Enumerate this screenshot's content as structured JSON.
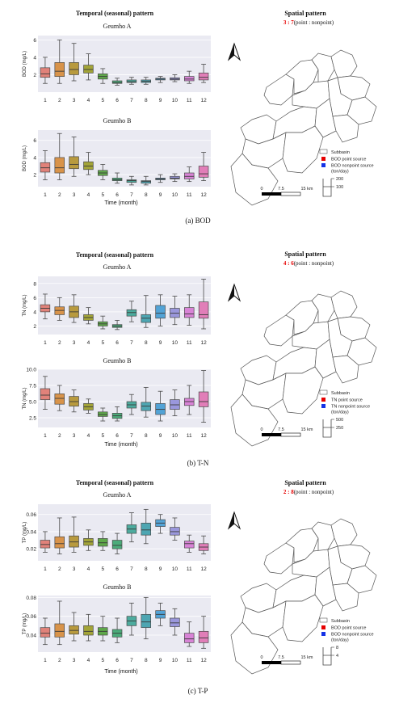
{
  "panels": [
    {
      "temporal_title": "Temporal (seasonal) pattern",
      "spatial_title": "Spatial pattern",
      "ratio_value": "3 : 7",
      "ratio_suffix": "(point : nonpoint)",
      "xlabel": "Time (month)",
      "caption": "(a)  BOD",
      "legend": {
        "subbasin": "Subbasin",
        "point": "BOD point source",
        "nonpoint": "BOD nonpoint source",
        "unit": "(ton/day)",
        "scale_top": "200",
        "scale_bottom": "100"
      },
      "scalebar": {
        "zero": "0",
        "mid": "7.5",
        "end": "15 km"
      }
    },
    {
      "temporal_title": "Temporal (seasonal) pattern",
      "spatial_title": "Spatial pattern",
      "ratio_value": "4 : 6",
      "ratio_suffix": "(point : nonpoint)",
      "xlabel": "Time (month)",
      "caption": "(b)  T-N",
      "legend": {
        "subbasin": "Subbasin",
        "point": "TN point source",
        "nonpoint": "TN nonpoint source",
        "unit": "(ton/day)",
        "scale_top": "500",
        "scale_bottom": "250"
      },
      "scalebar": {
        "zero": "0",
        "mid": "7.5",
        "end": "15 km"
      }
    },
    {
      "temporal_title": "Temporal (seasonal) pattern",
      "spatial_title": "Spatial pattern",
      "ratio_value": "2 : 8",
      "ratio_suffix": "(point : nonpoint)",
      "xlabel": "Time (month)",
      "caption": "(c)  T-P",
      "legend": {
        "subbasin": "Subbasin",
        "point": "BOD point source",
        "nonpoint": "BOD nonpoint source",
        "unit": "(ton/day)",
        "scale_top": "8",
        "scale_bottom": "4"
      },
      "scalebar": {
        "zero": "0",
        "mid": "7.5",
        "end": "15 km"
      }
    }
  ],
  "chart_data": [
    {
      "type": "box",
      "title": "Geumho A",
      "ylabel": "BOD (mg/L)",
      "categories": [
        "1",
        "2",
        "3",
        "4",
        "5",
        "6",
        "7",
        "8",
        "9",
        "10",
        "11",
        "12"
      ],
      "ylim": [
        0,
        6.5
      ],
      "yticks": [
        "2",
        "4",
        "6"
      ],
      "boxes": [
        {
          "min": 1.0,
          "q1": 1.7,
          "median": 2.1,
          "q3": 2.8,
          "max": 4.0
        },
        {
          "min": 1.0,
          "q1": 1.8,
          "median": 2.4,
          "q3": 3.4,
          "max": 6.0
        },
        {
          "min": 1.3,
          "q1": 2.0,
          "median": 2.6,
          "q3": 3.4,
          "max": 5.6
        },
        {
          "min": 1.4,
          "q1": 2.2,
          "median": 2.6,
          "q3": 3.1,
          "max": 4.4
        },
        {
          "min": 1.0,
          "q1": 1.5,
          "median": 1.8,
          "q3": 2.1,
          "max": 2.7
        },
        {
          "min": 0.8,
          "q1": 1.0,
          "median": 1.1,
          "q3": 1.3,
          "max": 1.6
        },
        {
          "min": 0.9,
          "q1": 1.1,
          "median": 1.2,
          "q3": 1.4,
          "max": 1.7
        },
        {
          "min": 0.9,
          "q1": 1.1,
          "median": 1.25,
          "q3": 1.4,
          "max": 1.7
        },
        {
          "min": 1.1,
          "q1": 1.4,
          "median": 1.5,
          "q3": 1.6,
          "max": 1.8
        },
        {
          "min": 1.2,
          "q1": 1.4,
          "median": 1.5,
          "q3": 1.65,
          "max": 2.0
        },
        {
          "min": 1.0,
          "q1": 1.3,
          "median": 1.5,
          "q3": 1.8,
          "max": 2.4
        },
        {
          "min": 1.1,
          "q1": 1.4,
          "median": 1.7,
          "q3": 2.2,
          "max": 3.2
        }
      ]
    },
    {
      "type": "box",
      "title": "Geumho B",
      "ylabel": "BOD (mg/L)",
      "categories": [
        "1",
        "2",
        "3",
        "4",
        "5",
        "6",
        "7",
        "8",
        "9",
        "10",
        "11",
        "12"
      ],
      "ylim": [
        0.6,
        7.2
      ],
      "yticks": [
        "2",
        "4",
        "6"
      ],
      "boxes": [
        {
          "min": 1.4,
          "q1": 2.3,
          "median": 2.8,
          "q3": 3.4,
          "max": 4.8
        },
        {
          "min": 1.4,
          "q1": 2.2,
          "median": 2.8,
          "q3": 4.0,
          "max": 6.8
        },
        {
          "min": 1.8,
          "q1": 2.7,
          "median": 3.2,
          "q3": 4.1,
          "max": 6.4
        },
        {
          "min": 2.0,
          "q1": 2.6,
          "median": 3.0,
          "q3": 3.5,
          "max": 4.6
        },
        {
          "min": 1.4,
          "q1": 1.9,
          "median": 2.2,
          "q3": 2.5,
          "max": 3.2
        },
        {
          "min": 1.0,
          "q1": 1.3,
          "median": 1.4,
          "q3": 1.6,
          "max": 2.2
        },
        {
          "min": 0.8,
          "q1": 1.1,
          "median": 1.3,
          "q3": 1.4,
          "max": 1.8
        },
        {
          "min": 0.8,
          "q1": 1.0,
          "median": 1.2,
          "q3": 1.3,
          "max": 1.8
        },
        {
          "min": 1.1,
          "q1": 1.4,
          "median": 1.5,
          "q3": 1.6,
          "max": 2.0
        },
        {
          "min": 1.2,
          "q1": 1.5,
          "median": 1.6,
          "q3": 1.8,
          "max": 2.1
        },
        {
          "min": 1.2,
          "q1": 1.5,
          "median": 1.8,
          "q3": 2.2,
          "max": 2.9
        },
        {
          "min": 1.3,
          "q1": 1.7,
          "median": 2.1,
          "q3": 3.0,
          "max": 4.6
        }
      ]
    },
    {
      "type": "box",
      "title": "Geumho A",
      "ylabel": "TN (mg/L)",
      "categories": [
        "1",
        "2",
        "3",
        "4",
        "5",
        "6",
        "7",
        "8",
        "9",
        "10",
        "11",
        "12"
      ],
      "ylim": [
        0.8,
        9.0
      ],
      "yticks": [
        "2",
        "4",
        "6",
        "8"
      ],
      "boxes": [
        {
          "min": 3.0,
          "q1": 4.0,
          "median": 4.5,
          "q3": 5.0,
          "max": 6.5
        },
        {
          "min": 2.8,
          "q1": 3.6,
          "median": 4.2,
          "q3": 4.7,
          "max": 6.0
        },
        {
          "min": 2.5,
          "q1": 3.2,
          "median": 4.0,
          "q3": 4.8,
          "max": 6.4
        },
        {
          "min": 2.3,
          "q1": 2.8,
          "median": 3.2,
          "q3": 3.6,
          "max": 4.6
        },
        {
          "min": 1.6,
          "q1": 2.0,
          "median": 2.3,
          "q3": 2.6,
          "max": 3.4
        },
        {
          "min": 1.5,
          "q1": 1.8,
          "median": 2.0,
          "q3": 2.2,
          "max": 2.8
        },
        {
          "min": 2.6,
          "q1": 3.4,
          "median": 3.9,
          "q3": 4.3,
          "max": 5.5
        },
        {
          "min": 1.8,
          "q1": 2.5,
          "median": 3.1,
          "q3": 3.6,
          "max": 6.3
        },
        {
          "min": 2.0,
          "q1": 3.1,
          "median": 3.8,
          "q3": 4.9,
          "max": 6.4
        },
        {
          "min": 2.2,
          "q1": 3.2,
          "median": 3.8,
          "q3": 4.5,
          "max": 6.2
        },
        {
          "min": 2.1,
          "q1": 3.2,
          "median": 3.7,
          "q3": 4.6,
          "max": 6.4
        },
        {
          "min": 1.6,
          "q1": 3.1,
          "median": 3.6,
          "q3": 5.4,
          "max": 8.6
        }
      ]
    },
    {
      "type": "box",
      "title": "Geumho B",
      "ylabel": "TN (mg/L)",
      "categories": [
        "1",
        "2",
        "3",
        "4",
        "5",
        "6",
        "7",
        "8",
        "9",
        "10",
        "11",
        "12"
      ],
      "ylim": [
        1.0,
        10.0
      ],
      "yticks": [
        "2.5",
        "5.0",
        "7.5",
        "10.0"
      ],
      "boxes": [
        {
          "min": 3.8,
          "q1": 5.3,
          "median": 6.0,
          "q3": 7.0,
          "max": 8.9
        },
        {
          "min": 3.6,
          "q1": 4.6,
          "median": 5.5,
          "q3": 6.2,
          "max": 7.5
        },
        {
          "min": 3.4,
          "q1": 4.3,
          "median": 5.0,
          "q3": 5.8,
          "max": 6.8
        },
        {
          "min": 3.2,
          "q1": 3.7,
          "median": 4.2,
          "q3": 4.7,
          "max": 5.4
        },
        {
          "min": 2.0,
          "q1": 2.7,
          "median": 3.0,
          "q3": 3.4,
          "max": 4.0
        },
        {
          "min": 2.0,
          "q1": 2.4,
          "median": 2.8,
          "q3": 3.2,
          "max": 4.2
        },
        {
          "min": 3.0,
          "q1": 4.0,
          "median": 4.5,
          "q3": 5.0,
          "max": 6.1
        },
        {
          "min": 2.6,
          "q1": 3.6,
          "median": 4.3,
          "q3": 4.9,
          "max": 7.2
        },
        {
          "min": 2.0,
          "q1": 3.0,
          "median": 3.8,
          "q3": 4.7,
          "max": 6.6
        },
        {
          "min": 2.8,
          "q1": 3.8,
          "median": 4.5,
          "q3": 5.3,
          "max": 6.8
        },
        {
          "min": 3.0,
          "q1": 4.4,
          "median": 5.0,
          "q3": 5.5,
          "max": 7.5
        },
        {
          "min": 1.8,
          "q1": 4.2,
          "median": 5.0,
          "q3": 6.5,
          "max": 9.8
        }
      ]
    },
    {
      "type": "box",
      "title": "Geumho A",
      "ylabel": "TP (mg/L)",
      "categories": [
        "1",
        "2",
        "3",
        "4",
        "5",
        "6",
        "7",
        "8",
        "9",
        "10",
        "11",
        "12"
      ],
      "ylim": [
        0.006,
        0.072
      ],
      "yticks": [
        "0.02",
        "0.04",
        "0.06"
      ],
      "boxes": [
        {
          "min": 0.016,
          "q1": 0.021,
          "median": 0.025,
          "q3": 0.03,
          "max": 0.04
        },
        {
          "min": 0.014,
          "q1": 0.021,
          "median": 0.026,
          "q3": 0.034,
          "max": 0.056
        },
        {
          "min": 0.016,
          "q1": 0.022,
          "median": 0.028,
          "q3": 0.035,
          "max": 0.057
        },
        {
          "min": 0.018,
          "q1": 0.024,
          "median": 0.028,
          "q3": 0.032,
          "max": 0.042
        },
        {
          "min": 0.018,
          "q1": 0.023,
          "median": 0.027,
          "q3": 0.032,
          "max": 0.04
        },
        {
          "min": 0.014,
          "q1": 0.02,
          "median": 0.024,
          "q3": 0.03,
          "max": 0.038
        },
        {
          "min": 0.028,
          "q1": 0.038,
          "median": 0.043,
          "q3": 0.048,
          "max": 0.062
        },
        {
          "min": 0.026,
          "q1": 0.036,
          "median": 0.042,
          "q3": 0.05,
          "max": 0.066
        },
        {
          "min": 0.038,
          "q1": 0.046,
          "median": 0.05,
          "q3": 0.054,
          "max": 0.06
        },
        {
          "min": 0.03,
          "q1": 0.036,
          "median": 0.04,
          "q3": 0.045,
          "max": 0.056
        },
        {
          "min": 0.016,
          "q1": 0.021,
          "median": 0.026,
          "q3": 0.029,
          "max": 0.036
        },
        {
          "min": 0.014,
          "q1": 0.018,
          "median": 0.022,
          "q3": 0.026,
          "max": 0.035
        }
      ]
    },
    {
      "type": "box",
      "title": "Geumho B",
      "ylabel": "TP (mg/L)",
      "categories": [
        "1",
        "2",
        "3",
        "4",
        "5",
        "6",
        "7",
        "8",
        "9",
        "10",
        "11",
        "12"
      ],
      "ylim": [
        0.022,
        0.082
      ],
      "yticks": [
        "0.04",
        "0.06",
        "0.08"
      ],
      "boxes": [
        {
          "min": 0.03,
          "q1": 0.038,
          "median": 0.042,
          "q3": 0.048,
          "max": 0.058
        },
        {
          "min": 0.03,
          "q1": 0.038,
          "median": 0.044,
          "q3": 0.052,
          "max": 0.076
        },
        {
          "min": 0.034,
          "q1": 0.041,
          "median": 0.045,
          "q3": 0.05,
          "max": 0.064
        },
        {
          "min": 0.034,
          "q1": 0.04,
          "median": 0.044,
          "q3": 0.05,
          "max": 0.062
        },
        {
          "min": 0.034,
          "q1": 0.04,
          "median": 0.044,
          "q3": 0.048,
          "max": 0.06
        },
        {
          "min": 0.032,
          "q1": 0.038,
          "median": 0.042,
          "q3": 0.046,
          "max": 0.058
        },
        {
          "min": 0.04,
          "q1": 0.05,
          "median": 0.055,
          "q3": 0.06,
          "max": 0.074
        },
        {
          "min": 0.036,
          "q1": 0.048,
          "median": 0.054,
          "q3": 0.062,
          "max": 0.08
        },
        {
          "min": 0.05,
          "q1": 0.058,
          "median": 0.062,
          "q3": 0.066,
          "max": 0.074
        },
        {
          "min": 0.04,
          "q1": 0.049,
          "median": 0.053,
          "q3": 0.058,
          "max": 0.068
        },
        {
          "min": 0.028,
          "q1": 0.032,
          "median": 0.036,
          "q3": 0.042,
          "max": 0.054
        },
        {
          "min": 0.026,
          "q1": 0.032,
          "median": 0.037,
          "q3": 0.044,
          "max": 0.06
        }
      ]
    }
  ],
  "colors": [
    "#e1827a",
    "#d8934a",
    "#b89a3e",
    "#a3a438",
    "#5fa84a",
    "#4bab7a",
    "#4dab9e",
    "#4ea6b2",
    "#52a3d6",
    "#9a97dc",
    "#d883d6",
    "#e17eb8"
  ],
  "point_color": "#e60000",
  "nonpoint_color": "#1432e6"
}
